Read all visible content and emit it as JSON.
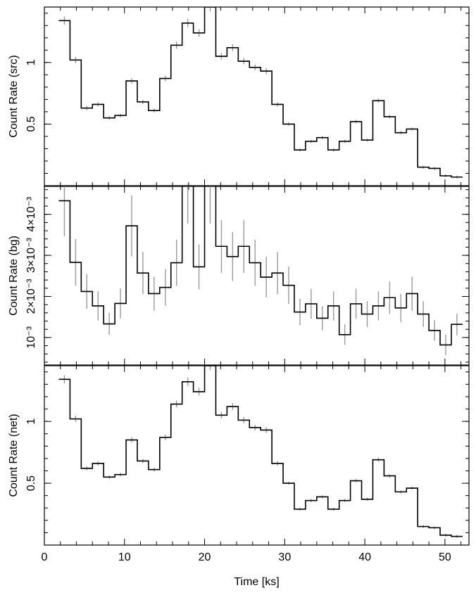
{
  "chart_data": {
    "type": "line",
    "layout": "three vertically stacked panels sharing the x axis",
    "xlabel": "Time [ks]",
    "xlim": [
      0,
      53
    ],
    "xticks": [
      "0",
      "10",
      "20",
      "30",
      "40",
      "50"
    ],
    "bin_width": 1.4,
    "x": [
      2.5,
      3.9,
      5.3,
      6.7,
      8.1,
      9.5,
      10.9,
      12.3,
      13.7,
      15.1,
      16.5,
      17.9,
      19.3,
      20.7,
      22.1,
      23.5,
      24.9,
      26.3,
      27.7,
      29.1,
      30.5,
      31.9,
      33.3,
      34.7,
      36.1,
      37.5,
      38.9,
      40.3,
      41.7,
      43.1,
      44.5,
      45.9,
      47.3,
      48.7,
      50.1,
      51.5
    ],
    "panels": [
      {
        "ylabel": "Count Rate (src)",
        "ylim": [
          0,
          1.45
        ],
        "yticks": [
          {
            "value": 0.5,
            "label": "0.5"
          },
          {
            "value": 1,
            "label": "1"
          }
        ],
        "series": [
          {
            "values": [
              1.34,
              1.02,
              0.63,
              0.66,
              0.55,
              0.57,
              0.85,
              0.68,
              0.61,
              0.87,
              1.14,
              1.32,
              1.24,
              1.45,
              1.05,
              1.12,
              1.01,
              0.96,
              0.93,
              0.66,
              0.5,
              0.29,
              0.36,
              0.39,
              0.29,
              0.36,
              0.52,
              0.37,
              0.69,
              0.56,
              0.43,
              0.46,
              0.15,
              0.14,
              0.08,
              0.07
            ]
          }
        ]
      },
      {
        "ylabel": "Count Rate (bg)",
        "ylim": [
          0.00033,
          0.00468
        ],
        "yticks": [
          {
            "value": 0.001,
            "label": "10⁻³"
          },
          {
            "value": 0.002,
            "label": "2×10⁻³"
          },
          {
            "value": 0.003,
            "label": "3×10⁻³"
          },
          {
            "value": 0.004,
            "label": "4×10⁻³"
          }
        ],
        "series": [
          {
            "values": [
              0.00433,
              0.00283,
              0.00212,
              0.00177,
              0.00133,
              0.00183,
              0.00372,
              0.00257,
              0.00207,
              0.00222,
              0.00282,
              0.00472,
              0.00272,
              0.00472,
              0.00322,
              0.00297,
              0.00322,
              0.00282,
              0.00247,
              0.00257,
              0.00227,
              0.00162,
              0.00182,
              0.00147,
              0.00177,
              0.00107,
              0.00182,
              0.00157,
              0.00177,
              0.00197,
              0.00172,
              0.00207,
              0.00157,
              0.00117,
              0.00082,
              0.00132
            ]
          }
        ]
      },
      {
        "ylabel": "Count Rate (net)",
        "ylim": [
          0,
          1.45
        ],
        "yticks": [
          {
            "value": 0.5,
            "label": "0.5"
          },
          {
            "value": 1,
            "label": "1"
          }
        ],
        "series": [
          {
            "values": [
              1.34,
              1.02,
              0.62,
              0.66,
              0.55,
              0.57,
              0.85,
              0.68,
              0.61,
              0.87,
              1.14,
              1.32,
              1.24,
              1.45,
              1.05,
              1.12,
              1.01,
              0.95,
              0.93,
              0.66,
              0.5,
              0.29,
              0.36,
              0.39,
              0.29,
              0.36,
              0.52,
              0.37,
              0.69,
              0.56,
              0.43,
              0.46,
              0.15,
              0.14,
              0.08,
              0.07
            ]
          }
        ]
      }
    ],
    "legend": "none",
    "grid": false,
    "colors": {
      "line": "#000000",
      "error_bars": "#9a9a9a"
    }
  }
}
